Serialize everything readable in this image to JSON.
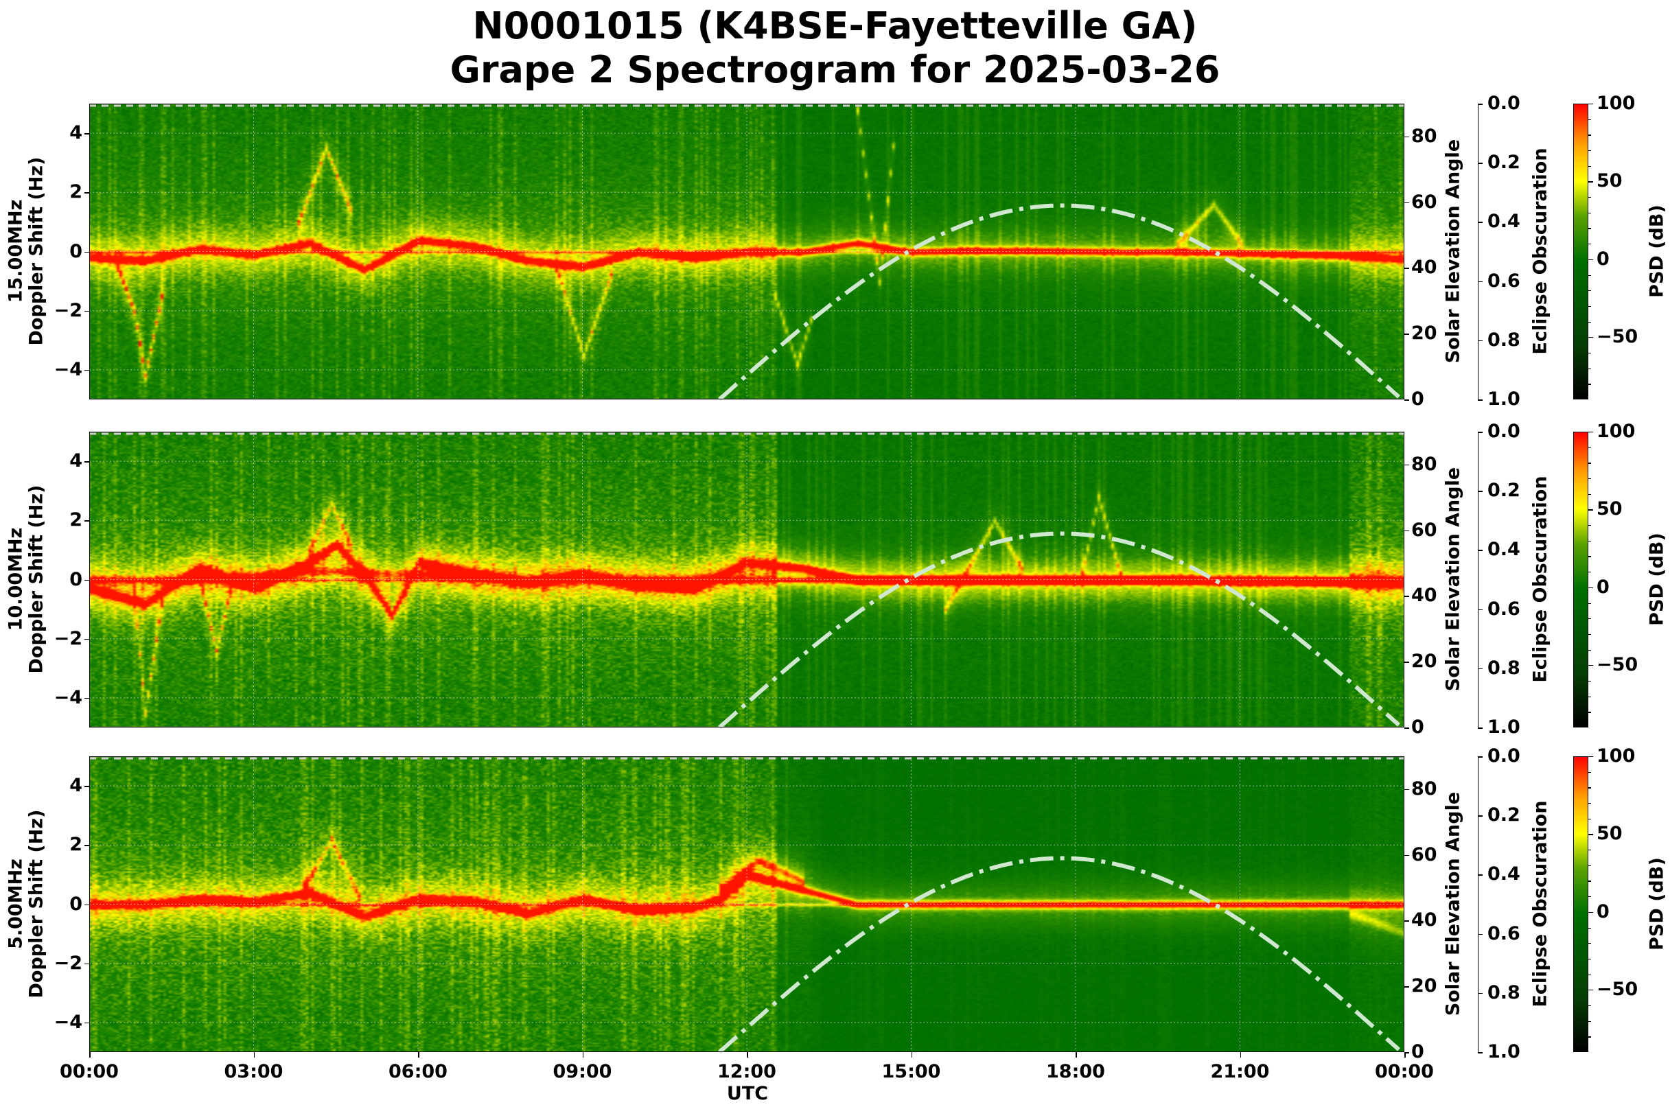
{
  "title": {
    "line1": "N0001015 (K4BSE-Fayetteville GA)",
    "line2": "Grape 2 Spectrogram for 2025-03-26"
  },
  "colors": {
    "background_green": "#0a7a0a",
    "trace_yellow": "#f0f000",
    "trace_red": "#ff3000",
    "solar_curve": "#cfe8cf",
    "grid": "#d8d8d8"
  },
  "chart_data": [
    {
      "type": "heatmap",
      "title": "15.00MHz",
      "ylabel": "15.00MHz\nDoppler Shift (Hz)",
      "ylabel_line1": "15.00MHz",
      "ylabel_line2": "Doppler Shift (Hz)",
      "xlabel": "UTC",
      "ylim": [
        -5,
        5
      ],
      "yticks": [
        "4",
        "2",
        "0",
        "−2",
        "−4"
      ],
      "right_axis_1": {
        "label": "Solar Elevation Angle",
        "ylim": [
          0,
          90
        ],
        "ticks": [
          "80",
          "60",
          "40",
          "20",
          "0"
        ]
      },
      "right_axis_2": {
        "label": "Eclipse Obscuration",
        "ylim": [
          1.0,
          0.0
        ],
        "ticks": [
          "0.0",
          "0.2",
          "0.4",
          "0.6",
          "0.8",
          "1.0"
        ]
      },
      "colorbar": {
        "label": "PSD (dB)",
        "range": [
          -90,
          100
        ],
        "ticks": [
          "100",
          "50",
          "0",
          "−50"
        ]
      },
      "noise_level": 0.22,
      "traces": [
        {
          "t": [
            0,
            1,
            2,
            3,
            4,
            5,
            6,
            7,
            8,
            9,
            10,
            11,
            12,
            13,
            14,
            15,
            16,
            17,
            18,
            19,
            20,
            21,
            22,
            23,
            24
          ],
          "f": [
            -0.2,
            -0.3,
            0.1,
            -0.1,
            0.3,
            -0.6,
            0.4,
            0.2,
            -0.3,
            -0.5,
            0,
            -0.2,
            0,
            0,
            0.3,
            0,
            0.05,
            0.05,
            0.02,
            0,
            0,
            -0.05,
            -0.1,
            -0.15,
            -0.25
          ],
          "strength": 0.75
        },
        {
          "t": [
            0.5,
            0.8,
            1.0,
            1.3
          ],
          "f": [
            -0.5,
            -2.0,
            -4.2,
            -1.5
          ],
          "strength": 0.55
        },
        {
          "t": [
            3.8,
            4.3,
            4.8
          ],
          "f": [
            1.0,
            3.5,
            1.2
          ],
          "strength": 0.45
        },
        {
          "t": [
            8.5,
            9.0,
            9.5
          ],
          "f": [
            -0.5,
            -3.5,
            -0.8
          ],
          "strength": 0.35
        },
        {
          "t": [
            12.5,
            12.9,
            13.2
          ],
          "f": [
            -1.5,
            -3.8,
            -2.0
          ],
          "strength": 0.35
        },
        {
          "t": [
            14.0,
            14.4,
            14.7
          ],
          "f": [
            4.8,
            -1.0,
            4.5
          ],
          "strength": 0.35
        },
        {
          "t": [
            19.8,
            20.5,
            21.0
          ],
          "f": [
            0.2,
            1.6,
            0.3
          ],
          "strength": 0.35
        }
      ],
      "solar_elevation": {
        "sunrise_utc": 11.5,
        "peak_utc": 17.75,
        "peak_deg": 59,
        "sunset_utc": 23.95
      },
      "eclipse_obscuration": 0.0
    },
    {
      "type": "heatmap",
      "title": "10.00MHz",
      "ylabel_line1": "10.00MHz",
      "ylabel_line2": "Doppler Shift (Hz)",
      "xlabel": "UTC",
      "ylim": [
        -5,
        5
      ],
      "yticks": [
        "4",
        "2",
        "0",
        "−2",
        "−4"
      ],
      "right_axis_1": {
        "label": "Solar Elevation Angle",
        "ylim": [
          0,
          90
        ],
        "ticks": [
          "80",
          "60",
          "40",
          "20",
          "0"
        ]
      },
      "right_axis_2": {
        "label": "Eclipse Obscuration",
        "ylim": [
          1.0,
          0.0
        ],
        "ticks": [
          "0.0",
          "0.2",
          "0.4",
          "0.6",
          "0.8",
          "1.0"
        ]
      },
      "colorbar": {
        "label": "PSD (dB)",
        "range": [
          -90,
          100
        ],
        "ticks": [
          "100",
          "50",
          "0",
          "−50"
        ]
      },
      "noise_level": 0.3,
      "traces": [
        {
          "t": [
            0,
            1,
            2,
            3,
            4,
            4.5,
            5.0,
            5.5,
            6,
            7,
            8,
            9,
            10,
            11,
            12,
            13,
            14,
            15,
            16,
            17,
            18,
            19,
            20,
            21,
            22,
            23,
            24
          ],
          "f": [
            -0.3,
            -0.8,
            0.4,
            -0.3,
            0.6,
            1.2,
            0.2,
            -1.2,
            0.6,
            0.2,
            -0.1,
            0.2,
            -0.2,
            -0.3,
            0.6,
            0.4,
            0,
            0,
            0,
            0,
            0,
            0,
            0,
            -0.05,
            -0.05,
            -0.1,
            -0.1
          ],
          "strength": 0.85
        },
        {
          "t": [
            0,
            2,
            4,
            6,
            8,
            10,
            12,
            14,
            16,
            18,
            20,
            22,
            24
          ],
          "f": [
            0,
            0,
            0.3,
            0.2,
            0,
            0,
            0,
            0,
            0,
            0,
            0,
            0,
            0
          ],
          "strength": 0.4
        },
        {
          "t": [
            0.8,
            1.0,
            1.3
          ],
          "f": [
            -0.5,
            -4.5,
            -0.8
          ],
          "strength": 0.45
        },
        {
          "t": [
            2.0,
            2.3,
            2.6
          ],
          "f": [
            0,
            -2.4,
            0
          ],
          "strength": 0.4
        },
        {
          "t": [
            4.0,
            4.4,
            4.8
          ],
          "f": [
            1.0,
            2.6,
            1.0
          ],
          "strength": 0.35
        },
        {
          "t": [
            15.6,
            16.5,
            17.0
          ],
          "f": [
            -1.0,
            2.0,
            0.4
          ],
          "strength": 0.35
        },
        {
          "t": [
            18.1,
            18.4,
            18.8
          ],
          "f": [
            0.2,
            2.8,
            0.2
          ],
          "strength": 0.35
        }
      ],
      "solar_elevation": {
        "sunrise_utc": 11.5,
        "peak_utc": 17.75,
        "peak_deg": 59,
        "sunset_utc": 23.95
      },
      "eclipse_obscuration": 0.0
    },
    {
      "type": "heatmap",
      "title": "5.00MHz",
      "ylabel_line1": "5.00MHz",
      "ylabel_line2": "Doppler Shift (Hz)",
      "xlabel": "UTC",
      "ylim": [
        -5,
        5
      ],
      "yticks": [
        "4",
        "2",
        "0",
        "−2",
        "−4"
      ],
      "right_axis_1": {
        "label": "Solar Elevation Angle",
        "ylim": [
          0,
          90
        ],
        "ticks": [
          "80",
          "60",
          "40",
          "20",
          "0"
        ]
      },
      "right_axis_2": {
        "label": "Eclipse Obscuration",
        "ylim": [
          1.0,
          0.0
        ],
        "ticks": [
          "0.0",
          "0.2",
          "0.4",
          "0.6",
          "0.8",
          "1.0"
        ]
      },
      "colorbar": {
        "label": "PSD (dB)",
        "range": [
          -90,
          100
        ],
        "ticks": [
          "100",
          "50",
          "0",
          "−50"
        ]
      },
      "noise_level": 0.32,
      "active_until_utc": 13.2,
      "traces": [
        {
          "t": [
            0,
            1,
            2,
            3,
            4,
            5,
            6,
            7,
            8,
            9,
            10,
            11,
            11.5,
            12,
            13,
            14,
            16,
            18,
            20,
            22,
            24
          ],
          "f": [
            0,
            0,
            0.2,
            0.1,
            0.4,
            -0.4,
            0.2,
            0.1,
            -0.3,
            0.2,
            -0.2,
            -0.1,
            0.2,
            1.0,
            0.5,
            0,
            0,
            0,
            0,
            0,
            0
          ],
          "strength": 0.8
        },
        {
          "t": [
            3.9,
            4.4,
            4.9
          ],
          "f": [
            0.6,
            2.2,
            0.3
          ],
          "strength": 0.4
        },
        {
          "t": [
            11.5,
            12.2,
            13.0
          ],
          "f": [
            0.5,
            1.5,
            0.8
          ],
          "strength": 0.45
        },
        {
          "t": [
            23.0,
            23.6,
            24.0
          ],
          "f": [
            -0.3,
            -0.7,
            -1.0
          ],
          "strength": 0.25
        }
      ],
      "solar_elevation": {
        "sunrise_utc": 11.5,
        "peak_utc": 17.75,
        "peak_deg": 59,
        "sunset_utc": 23.95
      },
      "eclipse_obscuration": 0.0
    }
  ],
  "x_axis": {
    "label": "UTC",
    "ticks": [
      "00:00",
      "03:00",
      "06:00",
      "09:00",
      "12:00",
      "15:00",
      "18:00",
      "21:00",
      "00:00"
    ]
  }
}
